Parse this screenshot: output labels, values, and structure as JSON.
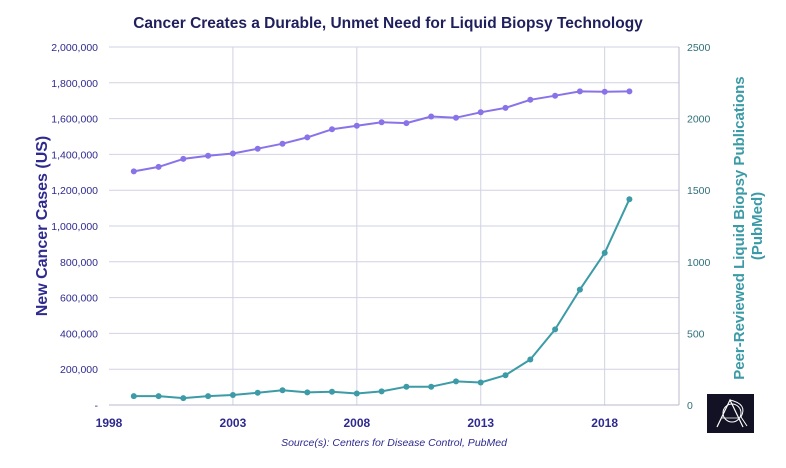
{
  "chart_data": {
    "type": "line",
    "title": "Cancer Creates a Durable, Unmet Need for Liquid Biopsy Technology",
    "source": "Source(s): Centers for Disease Control, PubMed",
    "xlabel": "",
    "ylabel_left": "New Cancer Cases (US)",
    "ylabel_right": "Peer-Reviewed Liquid Biopsy Publications (PubMed)",
    "ylabel_right_lines": [
      "Peer-Reviewed Liquid Biopsy Publications",
      "(PubMed)"
    ],
    "xlim": [
      1998,
      2021
    ],
    "ylim_left": [
      0,
      2000000
    ],
    "ylim_right": [
      0,
      2500
    ],
    "x_ticks": [
      "1998",
      "2003",
      "2008",
      "2013",
      "2018"
    ],
    "y_ticks_left": [
      "-",
      "200,000",
      "400,000",
      "600,000",
      "800,000",
      "1,000,000",
      "1,200,000",
      "1,400,000",
      "1,600,000",
      "1,800,000",
      "2,000,000"
    ],
    "y_ticks_right": [
      "0",
      "500",
      "1000",
      "1500",
      "2000",
      "2500"
    ],
    "grid": true,
    "series": [
      {
        "axis": "left",
        "color": "#8a72e8",
        "x": [
          1999,
          2000,
          2001,
          2002,
          2003,
          2004,
          2005,
          2006,
          2007,
          2008,
          2009,
          2010,
          2011,
          2012,
          2013,
          2014,
          2015,
          2016,
          2017,
          2018,
          2019
        ],
        "values": [
          1305000,
          1330000,
          1375000,
          1393000,
          1405000,
          1432000,
          1460000,
          1495000,
          1540000,
          1560000,
          1580000,
          1575000,
          1612000,
          1605000,
          1635000,
          1660000,
          1705000,
          1728000,
          1752000,
          1750000,
          1752000
        ]
      },
      {
        "axis": "right",
        "color": "#3c9ba6",
        "x": [
          1999,
          2000,
          2001,
          2002,
          2003,
          2004,
          2005,
          2006,
          2007,
          2008,
          2009,
          2010,
          2011,
          2012,
          2013,
          2014,
          2015,
          2016,
          2017,
          2018,
          2019
        ],
        "values": [
          62,
          62,
          48,
          62,
          70,
          85,
          103,
          88,
          92,
          80,
          95,
          128,
          128,
          165,
          157,
          208,
          318,
          528,
          806,
          1062,
          1437
        ]
      }
    ]
  }
}
